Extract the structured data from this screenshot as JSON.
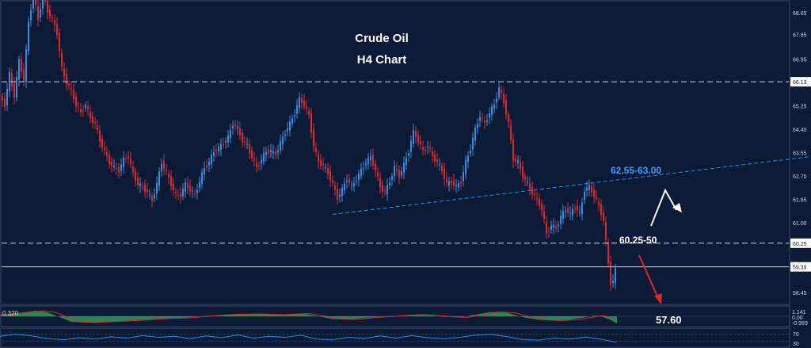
{
  "chart_data": {
    "type": "candlestick",
    "title": "Crude Oil",
    "subtitle": "H4 Chart",
    "colors": {
      "background": "#0b1a35",
      "up": "#2f8fe0",
      "down": "#e0252b",
      "trendline": "#2f8fe0",
      "level_line": "#cfd6e3",
      "arrow_up": "#ffffff",
      "arrow_down": "#e0252b",
      "osc_green": "#33c463",
      "osc_line": "#e0252b",
      "rsi_line": "#2f8fe0"
    },
    "ylim": [
      58.05,
      69.05
    ],
    "y_ticks": [
      "68.65",
      "67.85",
      "66.95",
      "66.13",
      "65.25",
      "64.40",
      "63.55",
      "62.70",
      "61.85",
      "61.00",
      "60.25",
      "59.39",
      "58.45"
    ],
    "highlighted_ticks": [
      "66.13",
      "60.25",
      "59.39"
    ],
    "levels": [
      66.13,
      60.25,
      59.39
    ],
    "close_path": [
      [
        0,
        65.6
      ],
      [
        6,
        65.3
      ],
      [
        12,
        66.4
      ],
      [
        18,
        65.6
      ],
      [
        24,
        66.9
      ],
      [
        30,
        66.2
      ],
      [
        36,
        68.3
      ],
      [
        42,
        69.3
      ],
      [
        48,
        68.4
      ],
      [
        54,
        69.3
      ],
      [
        60,
        68.7
      ],
      [
        66,
        68.4
      ],
      [
        72,
        67.9
      ],
      [
        78,
        66.6
      ],
      [
        84,
        66.1
      ],
      [
        90,
        65.8
      ],
      [
        96,
        65.3
      ],
      [
        102,
        65.0
      ],
      [
        108,
        65.3
      ],
      [
        114,
        64.8
      ],
      [
        120,
        64.6
      ],
      [
        126,
        64.0
      ],
      [
        132,
        63.6
      ],
      [
        138,
        63.2
      ],
      [
        144,
        63.0
      ],
      [
        150,
        62.9
      ],
      [
        156,
        63.3
      ],
      [
        162,
        63.4
      ],
      [
        168,
        62.8
      ],
      [
        174,
        62.4
      ],
      [
        180,
        62.3
      ],
      [
        186,
        62.1
      ],
      [
        192,
        61.8
      ],
      [
        198,
        62.4
      ],
      [
        204,
        63.2
      ],
      [
        210,
        62.8
      ],
      [
        216,
        62.4
      ],
      [
        222,
        62.0
      ],
      [
        228,
        62.0
      ],
      [
        234,
        62.4
      ],
      [
        240,
        62.2
      ],
      [
        246,
        62.0
      ],
      [
        252,
        62.5
      ],
      [
        258,
        63.0
      ],
      [
        264,
        63.2
      ],
      [
        270,
        63.6
      ],
      [
        276,
        63.7
      ],
      [
        282,
        63.9
      ],
      [
        288,
        64.1
      ],
      [
        294,
        64.6
      ],
      [
        300,
        64.4
      ],
      [
        306,
        64.0
      ],
      [
        312,
        63.8
      ],
      [
        318,
        63.4
      ],
      [
        324,
        63.0
      ],
      [
        330,
        63.3
      ],
      [
        336,
        63.6
      ],
      [
        342,
        63.6
      ],
      [
        348,
        63.5
      ],
      [
        354,
        63.9
      ],
      [
        360,
        64.3
      ],
      [
        366,
        64.6
      ],
      [
        372,
        65.0
      ],
      [
        378,
        65.5
      ],
      [
        384,
        65.3
      ],
      [
        390,
        64.9
      ],
      [
        396,
        63.8
      ],
      [
        402,
        63.2
      ],
      [
        408,
        63.1
      ],
      [
        414,
        62.8
      ],
      [
        420,
        62.4
      ],
      [
        426,
        61.9
      ],
      [
        432,
        62.2
      ],
      [
        438,
        62.6
      ],
      [
        444,
        62.3
      ],
      [
        450,
        62.6
      ],
      [
        456,
        62.9
      ],
      [
        462,
        63.2
      ],
      [
        468,
        63.4
      ],
      [
        474,
        62.9
      ],
      [
        480,
        62.3
      ],
      [
        486,
        62.1
      ],
      [
        492,
        62.5
      ],
      [
        498,
        63.0
      ],
      [
        504,
        62.7
      ],
      [
        510,
        63.1
      ],
      [
        516,
        63.6
      ],
      [
        522,
        64.3
      ],
      [
        528,
        64.0
      ],
      [
        534,
        63.6
      ],
      [
        540,
        63.8
      ],
      [
        546,
        63.4
      ],
      [
        552,
        63.2
      ],
      [
        558,
        62.9
      ],
      [
        564,
        62.4
      ],
      [
        570,
        62.5
      ],
      [
        576,
        62.3
      ],
      [
        582,
        62.5
      ],
      [
        588,
        63.2
      ],
      [
        594,
        63.7
      ],
      [
        600,
        64.4
      ],
      [
        606,
        64.9
      ],
      [
        612,
        64.6
      ],
      [
        618,
        65.0
      ],
      [
        624,
        65.3
      ],
      [
        630,
        65.9
      ],
      [
        636,
        65.4
      ],
      [
        642,
        64.6
      ],
      [
        648,
        63.3
      ],
      [
        654,
        63.2
      ],
      [
        660,
        62.7
      ],
      [
        666,
        62.4
      ],
      [
        672,
        62.1
      ],
      [
        678,
        61.8
      ],
      [
        684,
        61.5
      ],
      [
        690,
        60.6
      ],
      [
        696,
        60.9
      ],
      [
        702,
        60.8
      ],
      [
        708,
        61.2
      ],
      [
        714,
        61.5
      ],
      [
        720,
        61.3
      ],
      [
        726,
        61.6
      ],
      [
        732,
        61.3
      ],
      [
        738,
        62.2
      ],
      [
        744,
        62.3
      ],
      [
        750,
        62.0
      ],
      [
        756,
        61.6
      ],
      [
        762,
        61.1
      ],
      [
        768,
        59.5
      ],
      [
        772,
        58.6
      ],
      [
        778,
        59.4
      ]
    ],
    "trendline": {
      "start": [
        420,
        61.3
      ],
      "end": [
        1022,
        63.4
      ]
    },
    "annotations": {
      "resistance": "62.55-63.00",
      "pivot": "60.25-50",
      "target": "57.60"
    },
    "oscillator": {
      "max_label": "0.320",
      "upper_label": "1.141",
      "zero_label": "0.00",
      "lower_label": "-0.959",
      "histogram_path": [
        [
          0,
          0.2
        ],
        [
          30,
          0.5
        ],
        [
          45,
          0.7
        ],
        [
          60,
          0.5
        ],
        [
          75,
          -0.1
        ],
        [
          90,
          -0.7
        ],
        [
          110,
          -0.8
        ],
        [
          140,
          -0.65
        ],
        [
          170,
          -0.5
        ],
        [
          200,
          -0.3
        ],
        [
          230,
          -0.2
        ],
        [
          260,
          0.05
        ],
        [
          290,
          0.25
        ],
        [
          320,
          0.3
        ],
        [
          350,
          0.2
        ],
        [
          380,
          0.35
        ],
        [
          400,
          0.05
        ],
        [
          420,
          -0.35
        ],
        [
          440,
          -0.4
        ],
        [
          460,
          -0.2
        ],
        [
          480,
          -0.05
        ],
        [
          500,
          0.05
        ],
        [
          520,
          0.2
        ],
        [
          540,
          0.15
        ],
        [
          560,
          -0.05
        ],
        [
          580,
          -0.15
        ],
        [
          600,
          0.2
        ],
        [
          620,
          0.55
        ],
        [
          640,
          0.45
        ],
        [
          660,
          -0.1
        ],
        [
          680,
          -0.45
        ],
        [
          700,
          -0.55
        ],
        [
          720,
          -0.4
        ],
        [
          740,
          -0.1
        ],
        [
          750,
          0.1
        ],
        [
          760,
          -0.05
        ],
        [
          770,
          -0.4
        ],
        [
          778,
          -0.85
        ]
      ]
    },
    "rsi": {
      "labels": [
        "70",
        "30"
      ],
      "path": [
        [
          0,
          58
        ],
        [
          20,
          70
        ],
        [
          40,
          60
        ],
        [
          60,
          45
        ],
        [
          80,
          38
        ],
        [
          100,
          50
        ],
        [
          120,
          42
        ],
        [
          140,
          55
        ],
        [
          160,
          48
        ],
        [
          180,
          62
        ],
        [
          200,
          52
        ],
        [
          220,
          58
        ],
        [
          240,
          45
        ],
        [
          260,
          60
        ],
        [
          280,
          50
        ],
        [
          300,
          66
        ],
        [
          320,
          48
        ],
        [
          340,
          58
        ],
        [
          360,
          52
        ],
        [
          380,
          64
        ],
        [
          400,
          42
        ],
        [
          420,
          38
        ],
        [
          440,
          52
        ],
        [
          460,
          46
        ],
        [
          480,
          60
        ],
        [
          500,
          48
        ],
        [
          520,
          62
        ],
        [
          540,
          50
        ],
        [
          560,
          44
        ],
        [
          580,
          52
        ],
        [
          600,
          64
        ],
        [
          620,
          70
        ],
        [
          640,
          56
        ],
        [
          660,
          40
        ],
        [
          680,
          36
        ],
        [
          700,
          48
        ],
        [
          720,
          42
        ],
        [
          740,
          54
        ],
        [
          760,
          40
        ],
        [
          778,
          24
        ]
      ]
    }
  }
}
